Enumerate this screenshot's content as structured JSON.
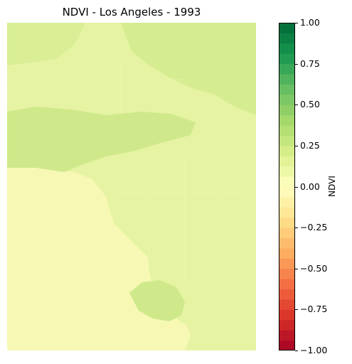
{
  "title": "NDVI - Los Angeles - 1993",
  "colorbar": {
    "label": "NDVI",
    "min": -1.0,
    "max": 1.0,
    "colormap": "RdYlGn",
    "levels": 32,
    "ticks": [
      "1.00",
      "0.75",
      "0.50",
      "0.25",
      "0.00",
      "−0.25",
      "−0.50",
      "−0.75",
      "−1.00"
    ]
  },
  "map": {
    "ocean_color": "#f6f8b4",
    "land_color": "#e6f3a3",
    "vegetation_color": "#cfe98a"
  }
}
